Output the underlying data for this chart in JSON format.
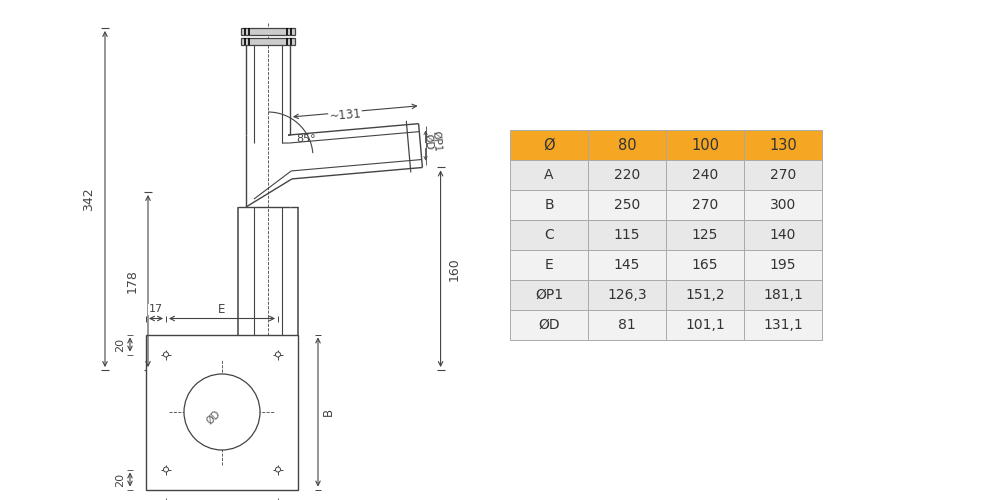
{
  "table_headers": [
    "Ø",
    "80",
    "100",
    "130"
  ],
  "table_rows": [
    [
      "A",
      "220",
      "240",
      "270"
    ],
    [
      "B",
      "250",
      "270",
      "300"
    ],
    [
      "C",
      "115",
      "125",
      "140"
    ],
    [
      "E",
      "145",
      "165",
      "195"
    ],
    [
      "ØP1",
      "126,3",
      "151,2",
      "181,1"
    ],
    [
      "ØD",
      "81",
      "101,1",
      "131,1"
    ]
  ],
  "header_bg": "#F5A623",
  "row_bg_odd": "#E8E8E8",
  "row_bg_even": "#F2F2F2",
  "border_color": "#aaaaaa",
  "text_color": "#333333",
  "drawing_color": "#444444",
  "bg_color": "#FFFFFF"
}
